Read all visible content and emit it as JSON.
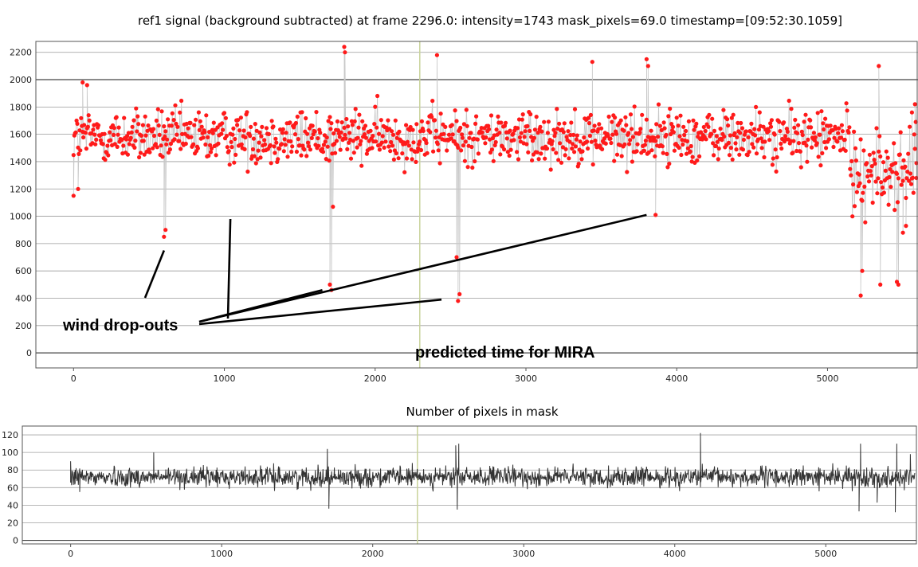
{
  "chart_data": [
    {
      "type": "scatter",
      "title": "ref1 signal (background subtracted) at frame 2296.0: intensity=1743 mask_pixels=69.0 timestamp=[09:52:30.1059]",
      "xlabel": "",
      "ylabel": "",
      "xlim": [
        -250,
        5600
      ],
      "ylim": [
        -110,
        2280
      ],
      "x_ticks": [
        0,
        1000,
        2000,
        3000,
        4000,
        5000
      ],
      "y_ticks": [
        0,
        200,
        400,
        600,
        800,
        1000,
        1200,
        1400,
        1600,
        1800,
        2000,
        2200
      ],
      "grid": true,
      "marker_color": "#ff1a1a",
      "line_color": "#c8c8c8",
      "predicted_frame": 2296,
      "predicted_line_color": "#c9d39a",
      "baseline": {
        "mean": 1580,
        "spread": 140,
        "late_mean": 1330,
        "late_start": 5150
      },
      "series": [
        {
          "x": [
            0,
            30,
            60,
            90,
            600,
            610,
            1700,
            1710,
            1720,
            1795,
            1800,
            2410,
            2540,
            2550,
            2560,
            3440,
            3800,
            3810,
            3860,
            5220,
            5230,
            5340,
            5350,
            5460,
            5470,
            5500,
            5520,
            5560,
            5580,
            5590
          ],
          "y": [
            1150,
            1200,
            1980,
            1960,
            850,
            900,
            500,
            460,
            1070,
            2240,
            2200,
            2180,
            700,
            380,
            430,
            2130,
            2150,
            2100,
            1010,
            420,
            600,
            2100,
            500,
            520,
            500,
            880,
            930,
            1760,
            1820,
            1280
          ]
        }
      ],
      "annotations": [
        {
          "text": "wind drop-outs",
          "targets": [
            [
              600,
              750
            ],
            [
              1650,
              460
            ],
            [
              1040,
              980
            ],
            [
              2440,
              390
            ],
            [
              3800,
              1010
            ]
          ]
        },
        {
          "text": "predicted time for MIRA",
          "at": [
            2296,
            0
          ]
        }
      ]
    },
    {
      "type": "line",
      "title": "Number of pixels in mask",
      "xlabel": "",
      "ylabel": "",
      "xlim": [
        -320,
        5600
      ],
      "ylim": [
        -4,
        130
      ],
      "x_ticks": [
        0,
        1000,
        2000,
        3000,
        4000,
        5000
      ],
      "y_ticks": [
        0,
        20,
        40,
        60,
        80,
        100,
        120
      ],
      "grid": true,
      "line_color": "#333333",
      "baseline": {
        "mean": 72,
        "spread": 8
      },
      "series": [
        {
          "x": [
            0,
            30,
            60,
            550,
            1700,
            1710,
            2550,
            2560,
            2570,
            4170,
            4180,
            5220,
            5230,
            5340,
            5460,
            5470,
            5560
          ],
          "y": [
            90,
            80,
            55,
            100,
            104,
            36,
            108,
            35,
            110,
            122,
            72,
            33,
            110,
            43,
            32,
            110,
            98
          ]
        }
      ]
    }
  ]
}
